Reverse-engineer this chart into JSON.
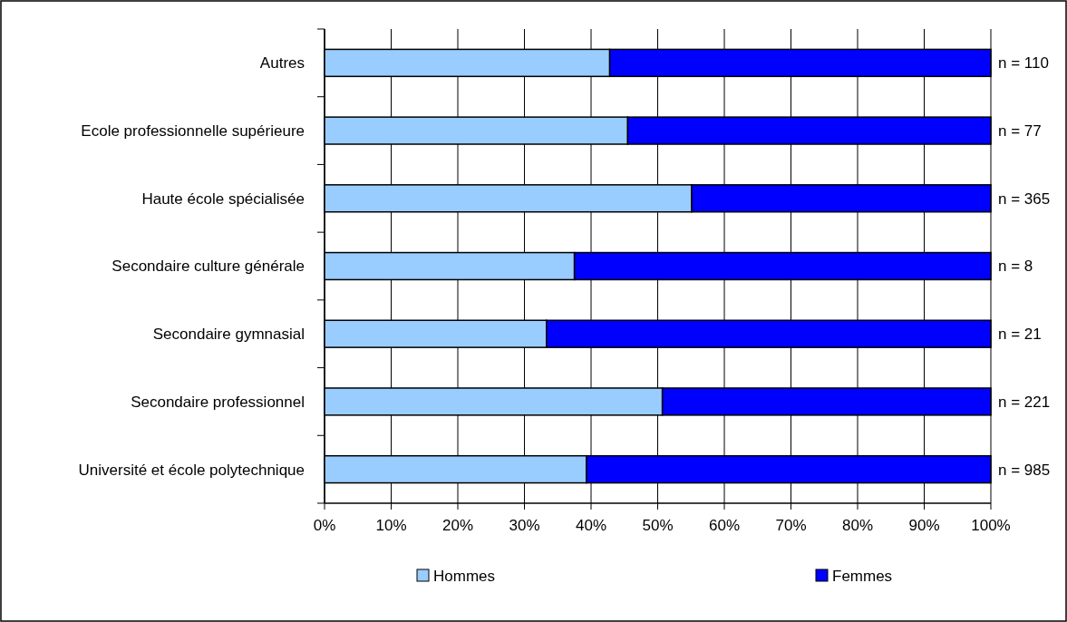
{
  "chart_data": {
    "type": "bar",
    "orientation": "horizontal",
    "stacked": true,
    "categories": [
      "Autres",
      "Ecole professionnelle supérieure",
      "Haute école spécialisée",
      "Secondaire culture générale",
      "Secondaire gymnasial",
      "Secondaire professionnel",
      "Université et école polytechnique"
    ],
    "series": [
      {
        "name": "Hommes",
        "color": "#99ccff",
        "values": [
          42.8,
          45.5,
          55.1,
          37.5,
          33.3,
          50.7,
          39.3
        ]
      },
      {
        "name": "Femmes",
        "color": "#0000ff",
        "values": [
          57.2,
          54.5,
          44.9,
          62.5,
          66.7,
          49.3,
          60.7
        ]
      }
    ],
    "xlim": [
      0,
      100
    ],
    "xticks": [
      {
        "value": 0,
        "label": "0%"
      },
      {
        "value": 10,
        "label": "10%"
      },
      {
        "value": 20,
        "label": "20%"
      },
      {
        "value": 30,
        "label": "30%"
      },
      {
        "value": 40,
        "label": "40%"
      },
      {
        "value": 50,
        "label": "50%"
      },
      {
        "value": 60,
        "label": "60%"
      },
      {
        "value": 70,
        "label": "70%"
      },
      {
        "value": 80,
        "label": "80%"
      },
      {
        "value": 90,
        "label": "90%"
      },
      {
        "value": 100,
        "label": "100%"
      }
    ],
    "annotations": [
      "n = 110",
      "n = 77",
      "n = 365",
      "n = 8",
      "n = 21",
      "n = 221",
      "n = 985"
    ],
    "grid": "x",
    "legend": "bottom"
  }
}
